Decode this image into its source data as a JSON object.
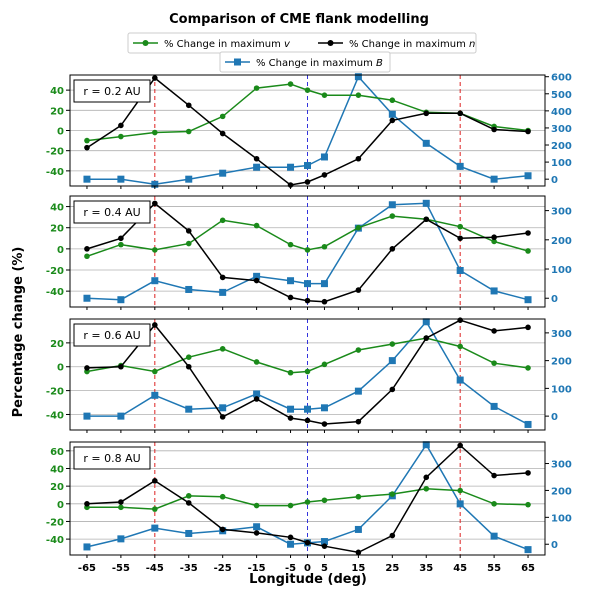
{
  "figure": {
    "title": "Comparison of CME flank modelling",
    "ylabel": "Percentage change (%)",
    "xlabel": "Longitude (deg)"
  },
  "legend": {
    "items": [
      {
        "prefix": "% Change in maximum ",
        "var": "v",
        "color": "#1a8a1a",
        "marker": "circle"
      },
      {
        "prefix": "% Change in maximum ",
        "var": "n",
        "color": "#000000",
        "marker": "circle"
      },
      {
        "prefix": "% Change in maximum ",
        "var": "B",
        "color": "#1f77b4",
        "marker": "square"
      }
    ]
  },
  "colors": {
    "v": "#1a8a1a",
    "n": "#000000",
    "B": "#1f77b4",
    "flank_lines": "#dd2222",
    "center_line": "#3333dd",
    "grid": "#b0b0b0"
  },
  "chart_data": {
    "type": "line",
    "x": [
      -65,
      -55,
      -45,
      -35,
      -25,
      -15,
      -5,
      0,
      5,
      15,
      25,
      35,
      45,
      55,
      65
    ],
    "x_tick_labels": [
      "-65",
      "-55",
      "-45",
      "-35",
      "-25",
      "-15",
      "-5",
      "0",
      "5",
      "15",
      "25",
      "35",
      "45",
      "55",
      "65"
    ],
    "vlines_red": [
      -45,
      45
    ],
    "vline_blue": [
      0
    ],
    "grid": true,
    "panels": [
      {
        "label": "r = 0.2 AU",
        "ylim_left": [
          -55,
          55
        ],
        "yticks_left": [
          -40,
          -20,
          0,
          20,
          40
        ],
        "ylim_right": [
          -40,
          610
        ],
        "yticks_right": [
          0,
          100,
          200,
          300,
          400,
          500,
          600
        ],
        "series": [
          {
            "name": "v",
            "axis": "left",
            "values": [
              -10,
              -6,
              -2,
              -1,
              14,
              42,
              46,
              40,
              35,
              35,
              30,
              18,
              17,
              4,
              0
            ]
          },
          {
            "name": "n",
            "axis": "left",
            "values": [
              -17,
              5,
              52,
              25,
              -3,
              -28,
              -54,
              -51,
              -44,
              -28,
              10,
              17,
              17,
              1,
              -1
            ]
          },
          {
            "name": "B",
            "axis": "right",
            "values": [
              0,
              0,
              -30,
              0,
              35,
              70,
              70,
              80,
              130,
              600,
              380,
              210,
              75,
              0,
              20
            ]
          }
        ]
      },
      {
        "label": "r = 0.4 AU",
        "ylim_left": [
          -55,
          50
        ],
        "yticks_left": [
          -40,
          -20,
          0,
          20,
          40
        ],
        "ylim_right": [
          -30,
          350
        ],
        "yticks_right": [
          0,
          100,
          200,
          300
        ],
        "series": [
          {
            "name": "v",
            "axis": "left",
            "values": [
              -7,
              4,
              -1,
              5,
              27,
              22,
              4,
              -1,
              2,
              20,
              31,
              28,
              21,
              7,
              -2
            ]
          },
          {
            "name": "n",
            "axis": "left",
            "values": [
              0,
              10,
              43,
              17,
              -27,
              -30,
              -46,
              -49,
              -50,
              -39,
              0,
              28,
              10,
              11,
              15
            ]
          },
          {
            "name": "B",
            "axis": "right",
            "values": [
              0,
              -5,
              60,
              30,
              20,
              75,
              60,
              50,
              50,
              240,
              320,
              325,
              95,
              25,
              -5
            ]
          }
        ]
      },
      {
        "label": "r = 0.6 AU",
        "ylim_left": [
          -53,
          40
        ],
        "yticks_left": [
          -40,
          -20,
          0,
          20
        ],
        "ylim_right": [
          -50,
          350
        ],
        "yticks_right": [
          0,
          100,
          200,
          300
        ],
        "series": [
          {
            "name": "v",
            "axis": "left",
            "values": [
              -4,
              1,
              -4,
              8,
              15,
              4,
              -5,
              -4,
              2,
              14,
              19,
              24,
              17,
              3,
              -1
            ]
          },
          {
            "name": "n",
            "axis": "left",
            "values": [
              -1,
              0,
              35,
              0,
              -42,
              -27,
              -43,
              -45,
              -48,
              -46,
              -19,
              24,
              39,
              30,
              33
            ]
          },
          {
            "name": "B",
            "axis": "right",
            "values": [
              0,
              0,
              75,
              25,
              30,
              80,
              25,
              25,
              30,
              90,
              200,
              340,
              130,
              35,
              -30
            ]
          }
        ]
      },
      {
        "label": "r = 0.8 AU",
        "ylim_left": [
          -58,
          70
        ],
        "yticks_left": [
          -40,
          -20,
          0,
          20,
          40,
          60
        ],
        "ylim_right": [
          -40,
          380
        ],
        "yticks_right": [
          0,
          100,
          200,
          300
        ],
        "series": [
          {
            "name": "v",
            "axis": "left",
            "values": [
              -4,
              -4,
              -6,
              9,
              8,
              -2,
              -2,
              2,
              4,
              8,
              11,
              17,
              15,
              0,
              -1
            ]
          },
          {
            "name": "n",
            "axis": "left",
            "values": [
              0,
              2,
              26,
              1,
              -29,
              -33,
              -38,
              -44,
              -48,
              -55,
              -36,
              30,
              66,
              32,
              35
            ]
          },
          {
            "name": "B",
            "axis": "right",
            "values": [
              -10,
              20,
              60,
              40,
              50,
              65,
              0,
              5,
              10,
              55,
              180,
              370,
              150,
              30,
              -20
            ]
          }
        ]
      }
    ]
  }
}
